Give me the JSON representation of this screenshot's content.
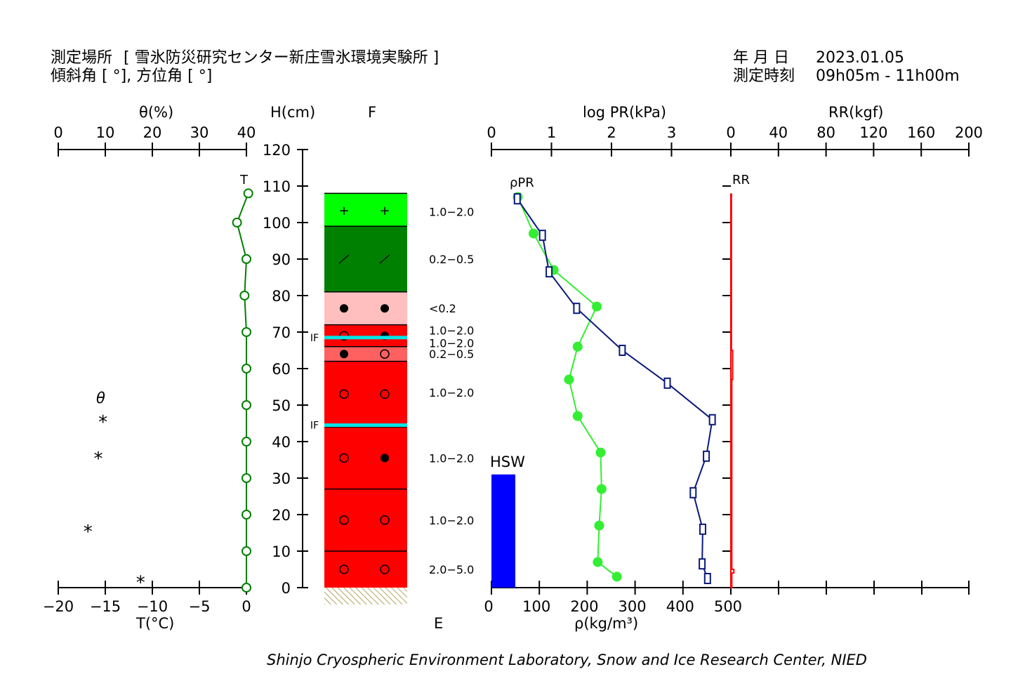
{
  "header": {
    "location_label": "測定場所",
    "location_name": "[ 雪氷防災研究センター新庄雪氷環境実験所 ]",
    "slope_label": "傾斜角 [ °], 方位角 [ °]",
    "date_label": "年 月 日",
    "date_value": "2023.01.05",
    "time_label": "測定時刻",
    "time_value": "09h05m - 11h00m"
  },
  "axes": {
    "theta_title": "θ(%)",
    "theta_ticks": [
      "0",
      "10",
      "20",
      "30",
      "40"
    ],
    "temp_title": "T(°C)",
    "temp_ticks": [
      "-20",
      "-15",
      "-10",
      "-5",
      "0"
    ],
    "height_title": "H(cm)",
    "height_ticks": [
      "120",
      "110",
      "100",
      "90",
      "80",
      "70",
      "60",
      "50",
      "40",
      "30",
      "20",
      "10",
      "0"
    ],
    "f_label": "F",
    "e_label": "E",
    "pr_title": "log PR(kPa)",
    "pr_ticks": [
      "0",
      "1",
      "2",
      "3"
    ],
    "rr_title": "RR(kgf)",
    "rr_ticks": [
      "0",
      "40",
      "80",
      "120",
      "160",
      "200"
    ],
    "rho_title": "ρ(kg/m³)",
    "rho_ticks": [
      "0",
      "100",
      "200",
      "300",
      "400",
      "500"
    ]
  },
  "legend": {
    "theta_symbol": "θ",
    "t_marker": "T",
    "rho_pr_marker": "ρPR",
    "rr_marker": "RR",
    "hsw_label": "HSW"
  },
  "footer": "Shinjo Cryospheric Environment Laboratory, Snow and Ice Research Center, NIED",
  "colors": {
    "temperature": "#008000",
    "density": "#33ee33",
    "hardness": "#0a1a7a",
    "ram": "#ff0000",
    "hsw": "#0000ff",
    "ice": "#00e5e5"
  },
  "chart_data": {
    "type": "snow-pit-profile",
    "temperature": {
      "unit": "°C",
      "xlim": [
        -20,
        0
      ],
      "points": [
        {
          "h": 108,
          "t": 0.2
        },
        {
          "h": 100,
          "t": -1.0
        },
        {
          "h": 90,
          "t": 0.0
        },
        {
          "h": 80,
          "t": -0.2
        },
        {
          "h": 70,
          "t": 0.0
        },
        {
          "h": 60,
          "t": 0.0
        },
        {
          "h": 50,
          "t": 0.0
        },
        {
          "h": 40,
          "t": 0.0
        },
        {
          "h": 30,
          "t": 0.0
        },
        {
          "h": 20,
          "t": 0.0
        },
        {
          "h": 10,
          "t": 0.0
        },
        {
          "h": 0,
          "t": 0.0
        }
      ]
    },
    "water_content": {
      "unit": "%",
      "xlim": [
        0,
        40
      ],
      "points": [
        {
          "h": 46,
          "theta": 9.5
        },
        {
          "h": 36,
          "theta": 8.5
        },
        {
          "h": 16,
          "theta": 6.3
        },
        {
          "h": 2,
          "theta": 17.5
        }
      ]
    },
    "layers": [
      {
        "bottom": 99,
        "top": 108,
        "color": "#00ff00",
        "grain": "plus",
        "size": "1.0-2.0"
      },
      {
        "bottom": 81,
        "top": 99,
        "color": "#008000",
        "grain": "slash",
        "size": "0.2-0.5"
      },
      {
        "bottom": 72,
        "top": 81,
        "color": "#ffbfbf",
        "grain": "filled",
        "size": "<0.2"
      },
      {
        "bottom": 66,
        "top": 72,
        "color": "#ff0000",
        "grain": "open-filled",
        "size": "1.0-2.0"
      },
      {
        "bottom": 62,
        "top": 66,
        "color": "#ff6060",
        "grain": "filled-open",
        "size": "0.2-0.5"
      },
      {
        "bottom": 44,
        "top": 62,
        "color": "#ff0000",
        "grain": "open",
        "size": "1.0-2.0"
      },
      {
        "bottom": 27,
        "top": 44,
        "color": "#ff0000",
        "grain": "open-filled",
        "size": "1.0-2.0"
      },
      {
        "bottom": 10,
        "top": 27,
        "color": "#ff0000",
        "grain": "open",
        "size": "1.0-2.0"
      },
      {
        "bottom": 0,
        "top": 10,
        "color": "#ff0000",
        "grain": "open",
        "size": "2.0-5.0"
      }
    ],
    "size_labels": [
      {
        "h": 103,
        "text": "1.0-2.0"
      },
      {
        "h": 90,
        "text": "0.2-0.5"
      },
      {
        "h": 76.5,
        "text": "<0.2"
      },
      {
        "h": 70.5,
        "text": "1.0-2.0"
      },
      {
        "h": 67,
        "text": "1.0-2.0"
      },
      {
        "h": 64,
        "text": "0.2-0.5"
      },
      {
        "h": 53.5,
        "text": "1.0-2.0"
      },
      {
        "h": 35.5,
        "text": "1.0-2.0"
      },
      {
        "h": 18.5,
        "text": "1.0-2.0"
      },
      {
        "h": 5,
        "text": "2.0-5.0"
      }
    ],
    "ice_films": [
      {
        "h": 68.5,
        "label": "IF"
      },
      {
        "h": 44.5,
        "label": "IF"
      }
    ],
    "density": {
      "unit": "kg/m3",
      "xlim": [
        0,
        500
      ],
      "points": [
        {
          "h": 107,
          "rho": 55
        },
        {
          "h": 97,
          "rho": 88
        },
        {
          "h": 87,
          "rho": 130
        },
        {
          "h": 77,
          "rho": 220
        },
        {
          "h": 66,
          "rho": 180
        },
        {
          "h": 57,
          "rho": 162
        },
        {
          "h": 47,
          "rho": 180
        },
        {
          "h": 37,
          "rho": 228
        },
        {
          "h": 27,
          "rho": 230
        },
        {
          "h": 17,
          "rho": 225
        },
        {
          "h": 7,
          "rho": 222
        },
        {
          "h": 3,
          "rho": 262
        }
      ]
    },
    "hardness": {
      "unit": "log kPa",
      "xlim": [
        0,
        4
      ],
      "points": [
        {
          "h": 106.5,
          "logpr": 0.43
        },
        {
          "h": 96.5,
          "logpr": 0.85
        },
        {
          "h": 86.5,
          "logpr": 0.96
        },
        {
          "h": 76.5,
          "logpr": 1.42
        },
        {
          "h": 65,
          "logpr": 2.18
        },
        {
          "h": 56,
          "logpr": 2.93
        },
        {
          "h": 46,
          "logpr": 3.68
        },
        {
          "h": 36,
          "logpr": 3.58
        },
        {
          "h": 26,
          "logpr": 3.36
        },
        {
          "h": 16,
          "logpr": 3.52
        },
        {
          "h": 6.5,
          "logpr": 3.51
        },
        {
          "h": 2.5,
          "logpr": 3.6
        }
      ]
    },
    "ram": {
      "unit": "kgf",
      "xlim": [
        0,
        200
      ],
      "profile": [
        {
          "h": 108,
          "rr": 0.5
        },
        {
          "h": 65,
          "rr": 0.5
        },
        {
          "h": 65,
          "rr": 1.5
        },
        {
          "h": 57,
          "rr": 1.5
        },
        {
          "h": 57,
          "rr": 0.8
        },
        {
          "h": 5,
          "rr": 0.8
        },
        {
          "h": 5,
          "rr": 2.5
        },
        {
          "h": 4,
          "rr": 2.5
        },
        {
          "h": 4,
          "rr": 0.8
        },
        {
          "h": 0,
          "rr": 0.8
        }
      ]
    },
    "hsw": {
      "unit": "cm",
      "value": 31
    }
  }
}
